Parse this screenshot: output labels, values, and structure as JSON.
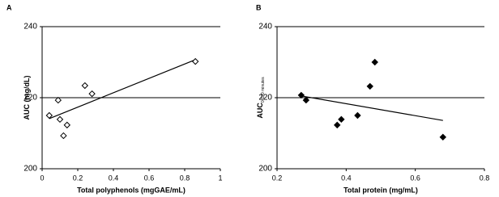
{
  "chart_data": [
    {
      "type": "scatter",
      "panel_label": "A",
      "x_label": "Total polyphenols (mgGAE/mL)",
      "y_label": "AUC (mg/dL)",
      "xlim": [
        0,
        1
      ],
      "xticks": [
        0,
        0.2,
        0.4,
        0.6,
        0.8,
        1
      ],
      "ylim": [
        200,
        240
      ],
      "yticks": [
        200,
        220,
        240
      ],
      "grid": true,
      "marker": "open",
      "color": "#000000",
      "x": [
        0.04,
        0.09,
        0.1,
        0.12,
        0.14,
        0.24,
        0.28,
        0.86
      ],
      "y": [
        215,
        219.3,
        213.9,
        209.3,
        212.3,
        223.4,
        221.1,
        230.2
      ],
      "trendline": {
        "x": [
          0.04,
          0.86
        ],
        "y": [
          214.1,
          230.7
        ]
      }
    },
    {
      "type": "scatter",
      "panel_label": "B",
      "x_label": "Total protein (mg/mL)",
      "y_label": "AUC",
      "y_label_sub": "0-120 minutes",
      "xlim": [
        0.2,
        0.8
      ],
      "xticks": [
        0.2,
        0.4,
        0.6,
        0.8
      ],
      "ylim": [
        200,
        240
      ],
      "yticks": [
        200,
        220,
        240
      ],
      "grid": true,
      "marker": "filled",
      "color": "#000000",
      "x": [
        0.27,
        0.284,
        0.374,
        0.386,
        0.433,
        0.469,
        0.483,
        0.68
      ],
      "y": [
        220.7,
        219.3,
        212.3,
        213.9,
        215,
        223.2,
        230,
        208.9
      ],
      "trendline": {
        "x": [
          0.27,
          0.68
        ],
        "y": [
          220.5,
          213.6
        ]
      }
    }
  ]
}
